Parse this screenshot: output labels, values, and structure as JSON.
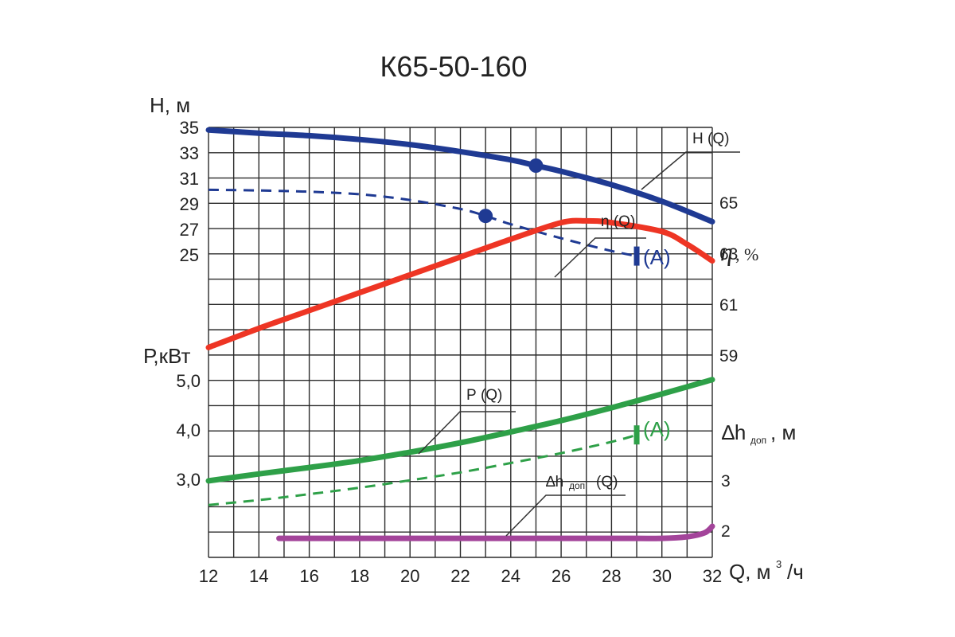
{
  "chart_data": {
    "type": "line",
    "title": "К65-50-160",
    "x": {
      "label": "Q, м³/ч",
      "label_main": "Q, м",
      "label_sup": "3",
      "label_tail": "/ч",
      "range": [
        12,
        32
      ],
      "ticks": [
        "12",
        "14",
        "16",
        "18",
        "20",
        "22",
        "24",
        "26",
        "28",
        "30",
        "32"
      ]
    },
    "axes": {
      "H": {
        "label": "Н, м",
        "range": [
          25,
          35
        ],
        "ticks": [
          "25",
          "27",
          "29",
          "31",
          "33",
          "35"
        ]
      },
      "eta": {
        "label": "η, %",
        "symbol": "η",
        "unit": ", %",
        "ticks": [
          "59",
          "61",
          "63",
          "65"
        ]
      },
      "P": {
        "label": "Р,кВт",
        "ticks": [
          "3,0",
          "4,0",
          "5,0"
        ]
      },
      "dh": {
        "label": "∆hдоп, м",
        "symbol": "∆h",
        "sub": "доп",
        "unit": ", м",
        "ticks": [
          "2",
          "3"
        ]
      }
    },
    "series": [
      {
        "name": "Н (Q)",
        "axis": "H",
        "style": "solid",
        "color": "#1f3a93",
        "points": [
          [
            12,
            34.8
          ],
          [
            14,
            34.55
          ],
          [
            16,
            34.35
          ],
          [
            18,
            34.05
          ],
          [
            20,
            33.65
          ],
          [
            22,
            33.1
          ],
          [
            24,
            32.45
          ],
          [
            25,
            32.0
          ],
          [
            26,
            31.55
          ],
          [
            28,
            30.5
          ],
          [
            30,
            29.2
          ],
          [
            32,
            27.6
          ]
        ]
      },
      {
        "name": "Н (Q) (A)",
        "axis": "H",
        "style": "dashed",
        "color": "#1f3a93",
        "points": [
          [
            12,
            30.1
          ],
          [
            14,
            30.05
          ],
          [
            16,
            29.95
          ],
          [
            18,
            29.75
          ],
          [
            20,
            29.3
          ],
          [
            22,
            28.6
          ],
          [
            23,
            28.05
          ],
          [
            24,
            27.4
          ],
          [
            26,
            26.3
          ],
          [
            28,
            25.3
          ],
          [
            29,
            24.9
          ]
        ]
      },
      {
        "name": "η (Q)",
        "axis": "eta",
        "style": "solid",
        "color": "#ee3524",
        "points": [
          [
            12,
            59.3
          ],
          [
            14,
            60.05
          ],
          [
            16,
            60.75
          ],
          [
            18,
            61.45
          ],
          [
            20,
            62.15
          ],
          [
            22,
            62.85
          ],
          [
            24,
            63.55
          ],
          [
            26,
            64.2
          ],
          [
            27,
            64.27
          ],
          [
            28,
            64.2
          ],
          [
            30,
            63.85
          ],
          [
            31,
            63.35
          ],
          [
            32,
            62.7
          ]
        ]
      },
      {
        "name": "Р (Q)",
        "axis": "P",
        "style": "solid",
        "color": "#2ea048",
        "points": [
          [
            12,
            2.97
          ],
          [
            14,
            3.11
          ],
          [
            16,
            3.24
          ],
          [
            18,
            3.38
          ],
          [
            20,
            3.55
          ],
          [
            22,
            3.74
          ],
          [
            24,
            3.96
          ],
          [
            26,
            4.19
          ],
          [
            28,
            4.45
          ],
          [
            30,
            4.73
          ],
          [
            32,
            5.02
          ]
        ]
      },
      {
        "name": "Р (Q) (A)",
        "axis": "P",
        "style": "dashed",
        "color": "#2ea048",
        "points": [
          [
            12,
            2.48
          ],
          [
            14,
            2.58
          ],
          [
            16,
            2.7
          ],
          [
            18,
            2.83
          ],
          [
            20,
            2.98
          ],
          [
            22,
            3.14
          ],
          [
            24,
            3.33
          ],
          [
            26,
            3.53
          ],
          [
            28,
            3.76
          ],
          [
            29,
            3.9
          ]
        ]
      },
      {
        "name": "∆hдоп (Q)",
        "axis": "dh",
        "style": "solid",
        "color": "#a3449a",
        "points": [
          [
            14.8,
            1.84
          ],
          [
            16,
            1.84
          ],
          [
            20,
            1.84
          ],
          [
            24,
            1.84
          ],
          [
            28,
            1.84
          ],
          [
            30,
            1.84
          ],
          [
            31,
            1.87
          ],
          [
            31.7,
            1.95
          ],
          [
            32,
            2.08
          ]
        ]
      }
    ],
    "markers": [
      {
        "series": "Н (Q)",
        "x": 25,
        "y": 32.0
      },
      {
        "series": "Н (Q) (A)",
        "x": 23,
        "y": 28.05
      }
    ],
    "annotations": [
      {
        "text": "Н (Q)",
        "series": "Н (Q)"
      },
      {
        "text": "η (Q)",
        "series": "η (Q)"
      },
      {
        "text": "Р (Q)",
        "series": "Р (Q)"
      },
      {
        "text": "∆hдоп (Q)",
        "main": "∆h",
        "sub": "доп",
        "tail": "(Q)",
        "series": "∆hдоп (Q)"
      },
      {
        "text": "(A)",
        "series": "Н (Q) (A)",
        "color": "#1f3a93"
      },
      {
        "text": "(A)",
        "series": "Р (Q) (A)",
        "color": "#2ea048"
      }
    ],
    "grid": true,
    "legend": "none"
  }
}
